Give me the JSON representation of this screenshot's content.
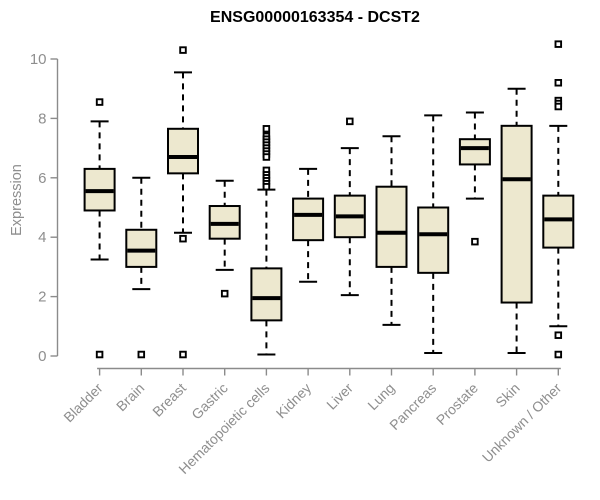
{
  "chart_data": {
    "type": "boxplot",
    "title": "ENSG00000163354 - DCST2",
    "ylabel": "Expression",
    "ylim": [
      0,
      10.6
    ],
    "yticks": [
      0,
      2,
      4,
      6,
      8,
      10
    ],
    "grid": false,
    "legend": "none",
    "categories": [
      "Bladder",
      "Brain",
      "Breast",
      "Gastric",
      "Hematopoietic cells",
      "Kidney",
      "Liver",
      "Lung",
      "Pancreas",
      "Prostate",
      "Skin",
      "Unknown / Other"
    ],
    "series": [
      {
        "name": "Bladder",
        "low": 3.25,
        "q1": 4.9,
        "median": 5.55,
        "q3": 6.3,
        "high": 7.9,
        "outliers": [
          8.55,
          0.05
        ]
      },
      {
        "name": "Brain",
        "low": 2.25,
        "q1": 3.0,
        "median": 3.55,
        "q3": 4.25,
        "high": 6.0,
        "outliers": [
          0.05
        ]
      },
      {
        "name": "Breast",
        "low": 4.15,
        "q1": 6.15,
        "median": 6.7,
        "q3": 7.65,
        "high": 9.55,
        "outliers": [
          10.3,
          3.95,
          0.05
        ]
      },
      {
        "name": "Gastric",
        "low": 2.9,
        "q1": 3.95,
        "median": 4.45,
        "q3": 5.05,
        "high": 5.9,
        "outliers": [
          2.1
        ]
      },
      {
        "name": "Hematopoietic cells",
        "low": 0.05,
        "q1": 1.2,
        "median": 1.95,
        "q3": 2.95,
        "high": 5.6,
        "outliers": [
          7.65,
          7.4,
          7.3,
          7.2,
          7.1,
          7.0,
          6.9,
          6.8,
          6.7,
          6.25,
          6.1,
          6.0,
          5.9,
          5.8,
          5.7
        ]
      },
      {
        "name": "Kidney",
        "low": 2.5,
        "q1": 3.9,
        "median": 4.75,
        "q3": 5.3,
        "high": 6.3,
        "outliers": []
      },
      {
        "name": "Liver",
        "low": 2.05,
        "q1": 4.0,
        "median": 4.7,
        "q3": 5.4,
        "high": 7.0,
        "outliers": [
          7.9
        ]
      },
      {
        "name": "Lung",
        "low": 1.05,
        "q1": 3.0,
        "median": 4.15,
        "q3": 5.7,
        "high": 7.4,
        "outliers": []
      },
      {
        "name": "Pancreas",
        "low": 0.1,
        "q1": 2.8,
        "median": 4.1,
        "q3": 5.0,
        "high": 8.1,
        "outliers": []
      },
      {
        "name": "Prostate",
        "low": 5.3,
        "q1": 6.45,
        "median": 7.0,
        "q3": 7.3,
        "high": 8.2,
        "outliers": [
          3.85
        ]
      },
      {
        "name": "Skin",
        "low": 0.1,
        "q1": 1.8,
        "median": 5.95,
        "q3": 7.75,
        "high": 9.0,
        "outliers": []
      },
      {
        "name": "Unknown / Other",
        "low": 1.0,
        "q1": 3.65,
        "median": 4.6,
        "q3": 5.4,
        "high": 7.75,
        "outliers": [
          10.5,
          9.2,
          8.6,
          8.5,
          8.4,
          0.7,
          0.05
        ]
      }
    ],
    "colors": {
      "box_fill": "#EDE8CF",
      "box_border": "#000000",
      "median": "#000000",
      "whisker": "#000000",
      "axis": "#8b8b8b",
      "label": "#8e8e8e",
      "title": "#000000",
      "background": "#ffffff"
    }
  }
}
